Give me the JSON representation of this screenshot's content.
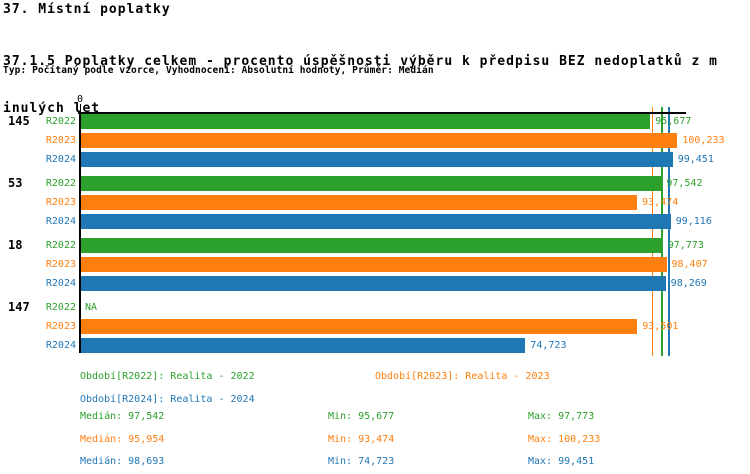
{
  "header": {
    "title": "37. Místní poplatky",
    "subtitle_line1": "37.1.5 Poplatky celkem - procento úspěšnosti výběru k předpisu BEZ nedoplatků z m",
    "subtitle_line2": "inulých let",
    "meta": "Typ: Počítaný podle vzorce, Vyhodnocení: Absolutní hodnoty, Průměr: Medián"
  },
  "colors": {
    "r2022_green": "#2ca02c",
    "r2023_orange": "#ff7f0e",
    "r2024_blue": "#1f77b4",
    "axis_black": "#000000"
  },
  "chart_data": {
    "type": "bar",
    "orientation": "horizontal",
    "x_origin_label": "0",
    "xlim": [
      0,
      101.7
    ],
    "grid": false,
    "categories": [
      "145",
      "53",
      "18",
      "147"
    ],
    "series": [
      {
        "name": "R2022",
        "color_key": "r2022_green",
        "values": [
          95.677,
          97.542,
          97.773,
          null
        ],
        "labels": [
          "95,677",
          "97,542",
          "97,773",
          "NA"
        ]
      },
      {
        "name": "R2023",
        "color_key": "r2023_orange",
        "values": [
          100.233,
          93.474,
          98.407,
          93.501
        ],
        "labels": [
          "100,233",
          "93,474",
          "98,407",
          "93,501"
        ]
      },
      {
        "name": "R2024",
        "color_key": "r2024_blue",
        "values": [
          99.451,
          99.116,
          98.269,
          74.723
        ],
        "labels": [
          "99,451",
          "99,116",
          "98,269",
          "74,723"
        ]
      }
    ],
    "median_lines": [
      {
        "series": "R2023",
        "value": 95.954,
        "color_key": "r2023_orange"
      },
      {
        "series": "R2022",
        "value": 97.542,
        "color_key": "r2022_green"
      },
      {
        "series": "R2024",
        "value": 98.693,
        "color_key": "r2024_blue"
      }
    ]
  },
  "legend": {
    "items": [
      {
        "label": "Období[R2022]: Realita - 2022",
        "color_key": "r2022_green"
      },
      {
        "label": "Období[R2023]: Realita - 2023",
        "color_key": "r2023_orange"
      },
      {
        "label": "Období[R2024]: Realita - 2024",
        "color_key": "r2024_blue"
      }
    ]
  },
  "stats": {
    "rows": [
      {
        "color_key": "r2022_green",
        "median": "Medián: 97,542",
        "min": "Min: 95,677",
        "max": "Max: 97,773"
      },
      {
        "color_key": "r2023_orange",
        "median": "Medián: 95,954",
        "min": "Min: 93,474",
        "max": "Max: 100,233"
      },
      {
        "color_key": "r2024_blue",
        "median": "Medián: 98,693",
        "min": "Min: 74,723",
        "max": "Max: 99,451"
      }
    ]
  }
}
